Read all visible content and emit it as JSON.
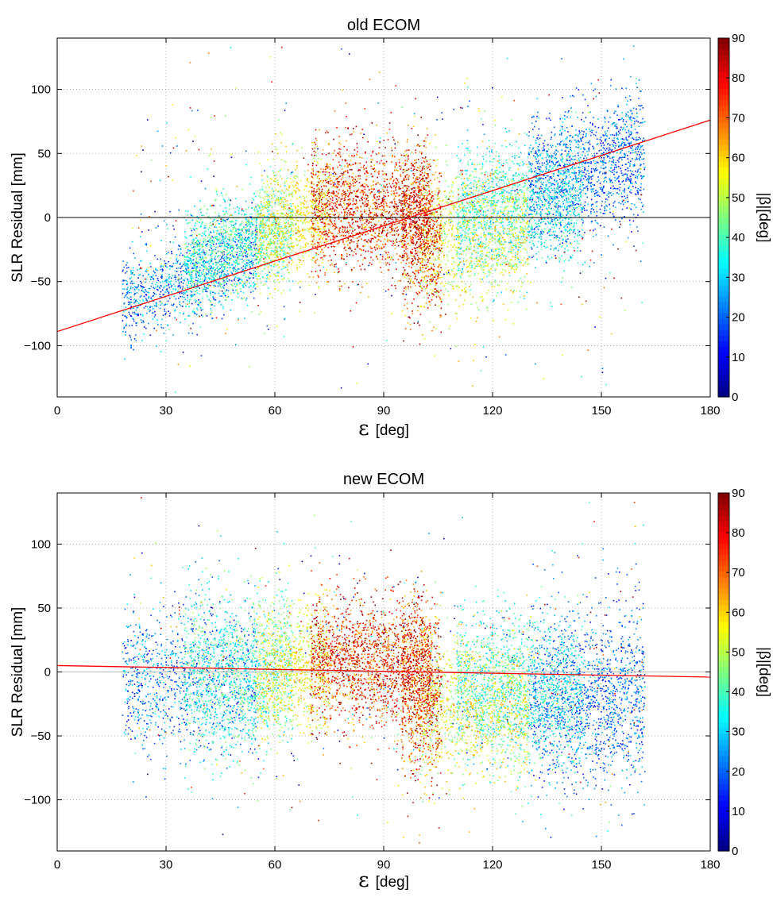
{
  "chart_data": [
    {
      "type": "scatter",
      "title": "old ECOM",
      "xlabel_symbol": "ε",
      "xlabel_unit": "[deg]",
      "ylabel": "SLR Residual [mm]",
      "xlim": [
        0,
        180
      ],
      "ylim": [
        -140,
        140
      ],
      "xticks": [
        0,
        30,
        60,
        90,
        120,
        150,
        180
      ],
      "yticks": [
        -100,
        -50,
        0,
        50,
        100
      ],
      "grid": true,
      "colorbar": {
        "label": "|β|[deg]",
        "range": [
          0,
          90
        ],
        "ticks": [
          0,
          10,
          20,
          30,
          40,
          50,
          60,
          70,
          80,
          90
        ],
        "colormap": "jet"
      },
      "zero_line": {
        "y": 0,
        "color": "#000000"
      },
      "fit_line": {
        "x": [
          0,
          180
        ],
        "y": [
          -89,
          76
        ],
        "color": "#ff0000"
      },
      "point_clusters": [
        {
          "beta_range": [
            10,
            35
          ],
          "x_range": [
            18,
            55
          ],
          "residual_mean_start": -65,
          "residual_mean_end": -25,
          "residual_sd": 18,
          "count": 1100
        },
        {
          "beta_range": [
            28,
            50
          ],
          "x_range": [
            35,
            65
          ],
          "residual_mean_start": -35,
          "residual_mean_end": -5,
          "residual_sd": 20,
          "count": 1200
        },
        {
          "beta_range": [
            45,
            65
          ],
          "x_range": [
            55,
            75
          ],
          "residual_mean_start": -10,
          "residual_mean_end": 5,
          "residual_sd": 22,
          "count": 800
        },
        {
          "beta_range": [
            60,
            90
          ],
          "x_range": [
            70,
            103
          ],
          "residual_mean_start": 10,
          "residual_mean_end": 5,
          "residual_sd": 25,
          "count": 1900
        },
        {
          "beta_range": [
            55,
            90
          ],
          "x_range": [
            95,
            106
          ],
          "residual_mean_start": -10,
          "residual_mean_end": -15,
          "residual_sd": 30,
          "count": 700
        },
        {
          "beta_range": [
            40,
            65
          ],
          "x_range": [
            100,
            130
          ],
          "residual_mean_start": -15,
          "residual_mean_end": -10,
          "residual_sd": 28,
          "count": 1100
        },
        {
          "beta_range": [
            25,
            45
          ],
          "x_range": [
            110,
            145
          ],
          "residual_mean_start": 5,
          "residual_mean_end": 15,
          "residual_sd": 25,
          "count": 1300
        },
        {
          "beta_range": [
            10,
            30
          ],
          "x_range": [
            130,
            162
          ],
          "residual_mean_start": 25,
          "residual_mean_end": 50,
          "residual_sd": 25,
          "count": 1400
        },
        {
          "beta_range": [
            0,
            90
          ],
          "x_range": [
            20,
            162
          ],
          "residual_mean_start": 0,
          "residual_mean_end": 0,
          "residual_sd": 60,
          "count": 500
        }
      ]
    },
    {
      "type": "scatter",
      "title": "new ECOM",
      "xlabel_symbol": "ε",
      "xlabel_unit": "[deg]",
      "ylabel": "SLR Residual [mm]",
      "xlim": [
        0,
        180
      ],
      "ylim": [
        -140,
        140
      ],
      "xticks": [
        0,
        30,
        60,
        90,
        120,
        150,
        180
      ],
      "yticks": [
        -100,
        -50,
        0,
        50,
        100
      ],
      "grid": true,
      "colorbar": {
        "label": "|β|[deg]",
        "range": [
          0,
          90
        ],
        "ticks": [
          0,
          10,
          20,
          30,
          40,
          50,
          60,
          70,
          80,
          90
        ],
        "colormap": "jet"
      },
      "zero_line": {
        "y": 0,
        "color": "#bbbbbb"
      },
      "fit_line": {
        "x": [
          0,
          180
        ],
        "y": [
          5,
          -4
        ],
        "color": "#ff0000"
      },
      "point_clusters": [
        {
          "beta_range": [
            10,
            35
          ],
          "x_range": [
            18,
            55
          ],
          "residual_mean_start": -5,
          "residual_mean_end": -5,
          "residual_sd": 28,
          "count": 1100
        },
        {
          "beta_range": [
            28,
            50
          ],
          "x_range": [
            35,
            65
          ],
          "residual_mean_start": -5,
          "residual_mean_end": 0,
          "residual_sd": 30,
          "count": 1200
        },
        {
          "beta_range": [
            45,
            65
          ],
          "x_range": [
            55,
            75
          ],
          "residual_mean_start": 0,
          "residual_mean_end": 5,
          "residual_sd": 25,
          "count": 800
        },
        {
          "beta_range": [
            60,
            90
          ],
          "x_range": [
            70,
            103
          ],
          "residual_mean_start": 10,
          "residual_mean_end": 5,
          "residual_sd": 25,
          "count": 1900
        },
        {
          "beta_range": [
            55,
            90
          ],
          "x_range": [
            95,
            106
          ],
          "residual_mean_start": -15,
          "residual_mean_end": -20,
          "residual_sd": 32,
          "count": 700
        },
        {
          "beta_range": [
            40,
            65
          ],
          "x_range": [
            100,
            130
          ],
          "residual_mean_start": -25,
          "residual_mean_end": -30,
          "residual_sd": 28,
          "count": 1100
        },
        {
          "beta_range": [
            25,
            45
          ],
          "x_range": [
            110,
            145
          ],
          "residual_mean_start": -10,
          "residual_mean_end": -20,
          "residual_sd": 28,
          "count": 1300
        },
        {
          "beta_range": [
            10,
            30
          ],
          "x_range": [
            130,
            162
          ],
          "residual_mean_start": -20,
          "residual_mean_end": -20,
          "residual_sd": 35,
          "count": 1400
        },
        {
          "beta_range": [
            0,
            90
          ],
          "x_range": [
            20,
            162
          ],
          "residual_mean_start": 0,
          "residual_mean_end": 0,
          "residual_sd": 60,
          "count": 500
        }
      ]
    }
  ]
}
